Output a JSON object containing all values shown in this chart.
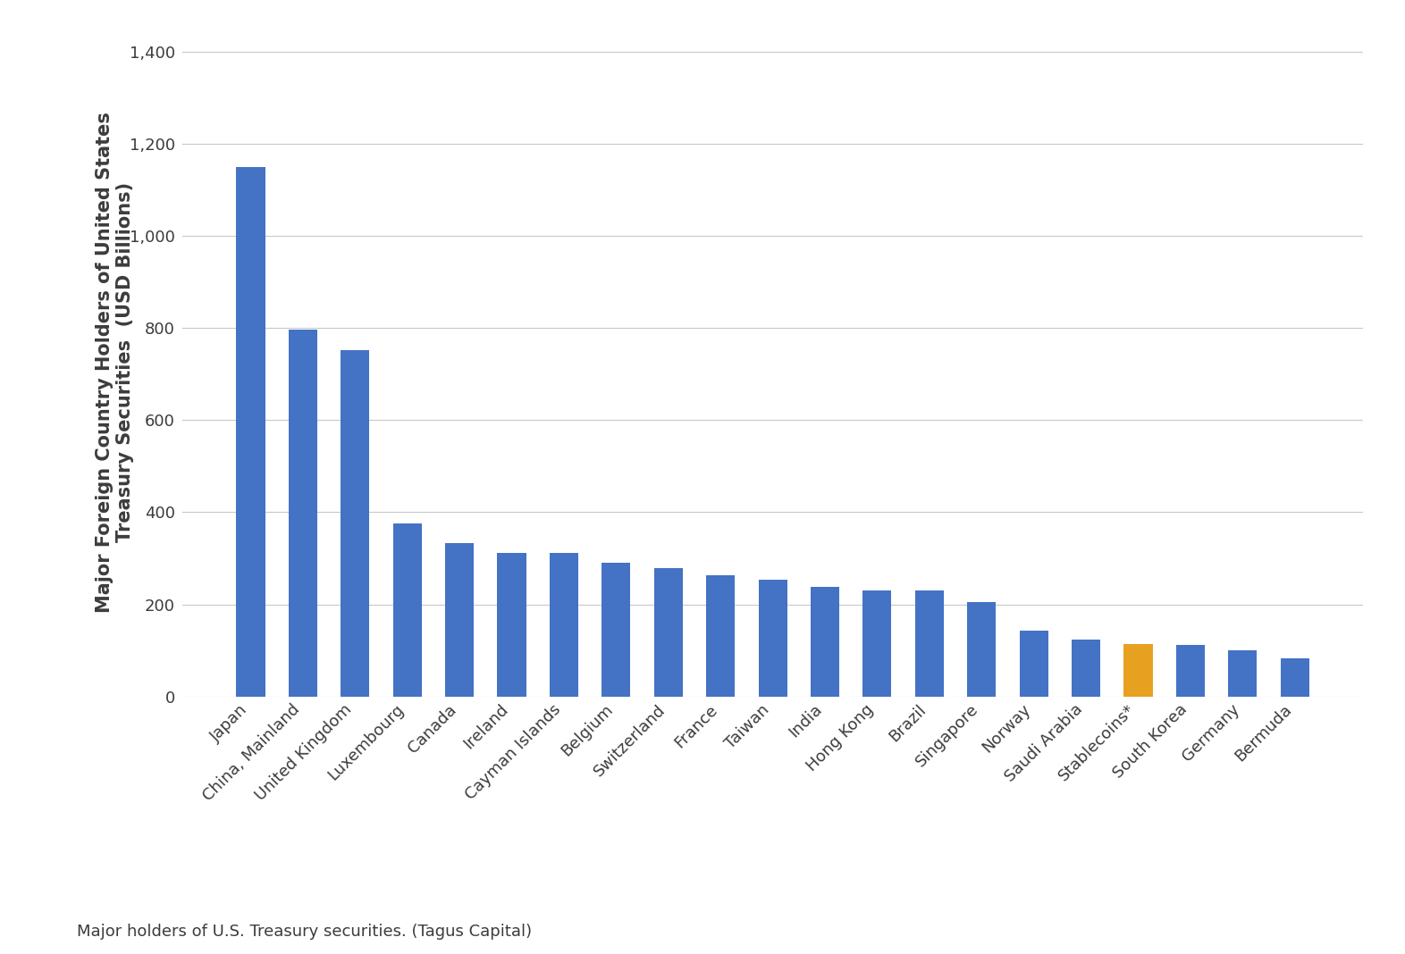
{
  "categories": [
    "Japan",
    "China, Mainland",
    "United Kingdom",
    "Luxembourg",
    "Canada",
    "Ireland",
    "Cayman Islands",
    "Belgium",
    "Switzerland",
    "France",
    "Taiwan",
    "India",
    "Hong Kong",
    "Brazil",
    "Singapore",
    "Norway",
    "Saudi Arabia",
    "Stablecoins*",
    "South Korea",
    "Germany",
    "Bermuda"
  ],
  "values": [
    1150,
    797,
    752,
    375,
    333,
    312,
    312,
    291,
    279,
    264,
    254,
    237,
    231,
    230,
    205,
    142,
    124,
    113,
    111,
    101,
    82
  ],
  "bar_colors": [
    "#4472C4",
    "#4472C4",
    "#4472C4",
    "#4472C4",
    "#4472C4",
    "#4472C4",
    "#4472C4",
    "#4472C4",
    "#4472C4",
    "#4472C4",
    "#4472C4",
    "#4472C4",
    "#4472C4",
    "#4472C4",
    "#4472C4",
    "#4472C4",
    "#4472C4",
    "#E8A020",
    "#4472C4",
    "#4472C4",
    "#4472C4"
  ],
  "ylabel_line1": "Major Foreign Country Holders of United States",
  "ylabel_line2": "Treasury Securities  (USD Billions)",
  "ylim": [
    0,
    1450
  ],
  "yticks": [
    0,
    200,
    400,
    600,
    800,
    1000,
    1200,
    1400
  ],
  "footnote": "Major holders of U.S. Treasury securities. (Tagus Capital)",
  "background_color": "#FFFFFF",
  "bar_edge_color": "none",
  "grid_color": "#C8C8C8",
  "text_color": "#3C3C3C",
  "ylabel_fontsize": 15,
  "tick_fontsize": 13,
  "xtick_fontsize": 13,
  "footnote_fontsize": 13,
  "bar_width": 0.55
}
